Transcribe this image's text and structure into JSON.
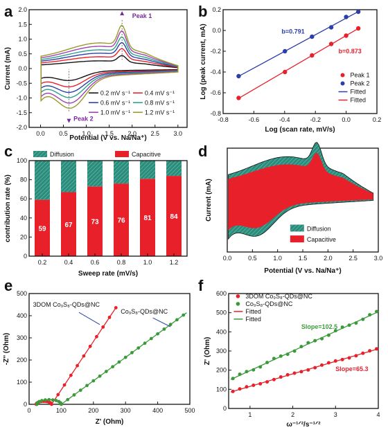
{
  "colors": {
    "red": "#e8202a",
    "blue": "#2c3ea8",
    "green": "#3a9a3a",
    "teal": "#2b8c7c",
    "purple": "#7a2a9a"
  },
  "panels": {
    "a": "a",
    "b": "b",
    "c": "c",
    "d": "d",
    "e": "e",
    "f": "f"
  },
  "chart_data": [
    {
      "id": "a",
      "type": "line",
      "xlabel": "Potential (V vs. Na/Na⁺)",
      "ylabel": "Current (mA)",
      "xlim": [
        -0.25,
        3.2
      ],
      "ylim": [
        -2.0,
        2.0
      ],
      "xticks": [
        "0.0",
        "0.5",
        "1.0",
        "1.5",
        "2.0",
        "2.5",
        "3.0"
      ],
      "yticks": [
        "-2.0",
        "-1.5",
        "-1.0",
        "-0.5",
        "0.0",
        "0.5",
        "1.0",
        "1.5",
        "2.0"
      ],
      "annotations": [
        "Peak 1",
        "Peak 2"
      ],
      "series": [
        {
          "name": "0.2 mV s⁻¹",
          "color": "#111111",
          "scale": 0.3
        },
        {
          "name": "0.4 mV s⁻¹",
          "color": "#e8202a",
          "scale": 0.46
        },
        {
          "name": "0.6 mV s⁻¹",
          "color": "#2c3ea8",
          "scale": 0.6
        },
        {
          "name": "0.8 mV s⁻¹",
          "color": "#2ba08a",
          "scale": 0.73
        },
        {
          "name": "1.0 mV s⁻¹",
          "color": "#a040b0",
          "scale": 0.87
        },
        {
          "name": "1.2 mV s⁻¹",
          "color": "#9a9a2a",
          "scale": 1.0
        }
      ]
    },
    {
      "id": "b",
      "type": "scatter",
      "xlabel": "Log (scan rate, mV/s)",
      "ylabel": "Log (peak current, mA)",
      "xlim": [
        -0.8,
        0.2
      ],
      "ylim": [
        -0.8,
        0.2
      ],
      "xticks": [
        "-0.8",
        "-0.6",
        "-0.4",
        "-0.2",
        "0.0",
        "0.2"
      ],
      "yticks": [
        "-0.8",
        "-0.6",
        "-0.4",
        "-0.2",
        "0.0",
        "0.2"
      ],
      "annotations": [
        "b=0.791",
        "b=0.873"
      ],
      "legend": [
        "Peak 1",
        "Peak 2",
        "Fitted",
        "Fitted"
      ],
      "series": [
        {
          "name": "Peak 1",
          "color": "#e8202a",
          "x": [
            -0.699,
            -0.398,
            -0.222,
            -0.097,
            0.0,
            0.079
          ],
          "y": [
            -0.65,
            -0.4,
            -0.24,
            -0.13,
            -0.05,
            0.02
          ]
        },
        {
          "name": "Peak 2",
          "color": "#2c3ea8",
          "x": [
            -0.699,
            -0.398,
            -0.222,
            -0.097,
            0.0,
            0.079
          ],
          "y": [
            -0.44,
            -0.2,
            -0.06,
            0.03,
            0.13,
            0.18
          ]
        }
      ]
    },
    {
      "id": "c",
      "type": "bar",
      "xlabel": "Sweep rate (mV/s)",
      "ylabel": "contribution rate (%)",
      "ylim": [
        0,
        100
      ],
      "categories": [
        "0.2",
        "0.4",
        "0.6",
        "0.8",
        "1.0",
        "1.2"
      ],
      "yticks": [
        "0",
        "20",
        "40",
        "60",
        "80",
        "100"
      ],
      "legend": [
        "Diffusion",
        "Capacitive"
      ],
      "series": [
        {
          "name": "Capacitive",
          "values": [
            59,
            67,
            73,
            76,
            81,
            84
          ]
        },
        {
          "name": "Diffusion",
          "values": [
            41,
            33,
            27,
            24,
            19,
            16
          ]
        }
      ],
      "value_labels": [
        "59",
        "67",
        "73",
        "76",
        "81",
        "84"
      ]
    },
    {
      "id": "d",
      "type": "area",
      "xlabel": "Potential (V vs. Na/Na⁺)",
      "ylabel": "Current (mA)",
      "xlim": [
        0.0,
        3.0
      ],
      "xticks": [
        "0.0",
        "0.5",
        "1.0",
        "1.5",
        "2.0",
        "2.5",
        "3.0"
      ],
      "legend": [
        "Diffusion",
        "Capacitive"
      ]
    },
    {
      "id": "e",
      "type": "scatter",
      "xlabel": "Z' (Ohm)",
      "ylabel": "-Z'' (Ohm)",
      "xlim": [
        0,
        500
      ],
      "ylim": [
        0,
        500
      ],
      "xticks": [
        "0",
        "100",
        "200",
        "300",
        "400",
        "500"
      ],
      "yticks": [
        "0",
        "100",
        "200",
        "300",
        "400",
        "500"
      ],
      "annotations": [
        "3DOM Co₉S₈-QDs@NC",
        "Co₉S₈-QDs@NC"
      ]
    },
    {
      "id": "f",
      "type": "scatter",
      "xlabel": "ω⁻¹ᐟ²/s⁻¹ᐟ²",
      "ylabel": "Z' (Ohm)",
      "xlim": [
        0.5,
        4.0
      ],
      "ylim": [
        0,
        600
      ],
      "xticks": [
        "1",
        "2",
        "3",
        "4"
      ],
      "yticks": [
        "0",
        "100",
        "200",
        "300",
        "400",
        "500",
        "600"
      ],
      "legend": [
        "3DOM Co₉S₈-QDs@NC",
        "Co₉S₈-QDs@NC",
        "Fitted",
        "Fitted"
      ],
      "annotations": [
        "Slope=102.5",
        "Slope=65.3"
      ],
      "series": [
        {
          "name": "3DOM Co₉S₈-QDs@NC",
          "color": "#e8202a",
          "slope": 65.3,
          "intercept": 50
        },
        {
          "name": "Co₉S₈-QDs@NC",
          "color": "#3a9a3a",
          "slope": 102.5,
          "intercept": 95
        }
      ]
    }
  ]
}
